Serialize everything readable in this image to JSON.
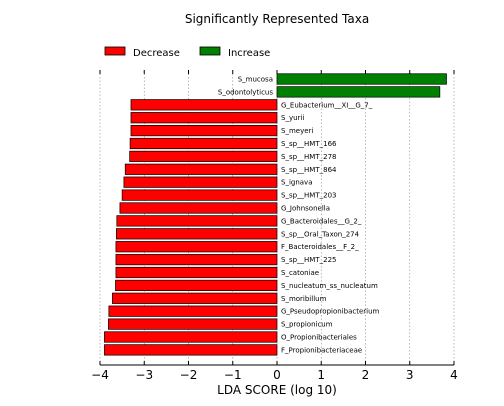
{
  "chart_data": {
    "type": "bar",
    "orientation": "horizontal",
    "title": "Significantly Represented Taxa",
    "xlabel": "LDA SCORE (log 10)",
    "ylabel": "",
    "xlim": [
      -4,
      4
    ],
    "xticks": [
      "−4",
      "−3",
      "−2",
      "−1",
      "0",
      "1",
      "2",
      "3",
      "4"
    ],
    "grid": "vertical dotted",
    "legend_position": "top-left",
    "legend": [
      {
        "label": "Decrease",
        "color": "#ff0000"
      },
      {
        "label": "Increase",
        "color": "#008000"
      }
    ],
    "categories": [
      "S_mucosa",
      "S_odontolyticus",
      "G_Eubacterium__XI__G_7_",
      "S_yurii",
      "S_meyeri",
      "S_sp__HMT_166",
      "S_sp__HMT_278",
      "S_sp__HMT_864",
      "S_ignava",
      "S_sp__HMT_203",
      "G_Johnsonella",
      "G_Bacteroidales__G_2_",
      "S_sp__Oral_Taxon_274",
      "F_Bacteroidales__F_2_",
      "S_sp__HMT_225",
      "S_catoniae",
      "S_nucleatum_ss_nucleatum",
      "S_moribillum",
      "G_Pseudopropionibacterium",
      "S_propionicum",
      "O_Propionibacteriales",
      "F_Propionibacteriaceae"
    ],
    "values": [
      3.83,
      3.68,
      -3.3,
      -3.3,
      -3.3,
      -3.32,
      -3.33,
      -3.43,
      -3.46,
      -3.5,
      -3.55,
      -3.62,
      -3.63,
      -3.64,
      -3.64,
      -3.64,
      -3.65,
      -3.72,
      -3.8,
      -3.81,
      -3.9,
      -3.9
    ]
  }
}
